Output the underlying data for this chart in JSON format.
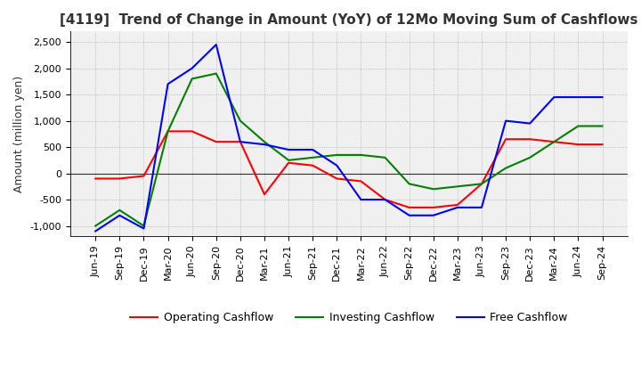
{
  "title": "[4119]  Trend of Change in Amount (YoY) of 12Mo Moving Sum of Cashflows",
  "ylabel": "Amount (million yen)",
  "ylim": [
    -1200,
    2700
  ],
  "yticks": [
    -1000,
    -500,
    0,
    500,
    1000,
    1500,
    2000,
    2500
  ],
  "x_labels": [
    "Jun-19",
    "Sep-19",
    "Dec-19",
    "Mar-20",
    "Jun-20",
    "Sep-20",
    "Dec-20",
    "Mar-21",
    "Jun-21",
    "Sep-21",
    "Dec-21",
    "Mar-22",
    "Jun-22",
    "Sep-22",
    "Dec-22",
    "Mar-23",
    "Jun-23",
    "Sep-23",
    "Dec-23",
    "Mar-24",
    "Jun-24",
    "Sep-24"
  ],
  "operating": [
    -100,
    -100,
    -50,
    800,
    800,
    600,
    600,
    -400,
    200,
    150,
    -100,
    -150,
    -500,
    -650,
    -650,
    -600,
    -200,
    650,
    650,
    600,
    550,
    550
  ],
  "investing": [
    -1000,
    -700,
    -1000,
    800,
    1800,
    1900,
    1000,
    600,
    250,
    300,
    350,
    350,
    300,
    -200,
    -300,
    -250,
    -200,
    100,
    300,
    600,
    900,
    900
  ],
  "free": [
    -1100,
    -800,
    -1050,
    1700,
    2000,
    2450,
    600,
    550,
    450,
    450,
    150,
    -500,
    -500,
    -800,
    -800,
    -650,
    -650,
    1000,
    950,
    1450,
    1450,
    1450
  ],
  "operating_color": "#ff0000",
  "investing_color": "#008000",
  "free_color": "#0000ff",
  "bg_color": "#ffffff",
  "plot_bg_color": "#f0f0f0",
  "grid_color": "#aaaaaa",
  "title_color": "#333333",
  "title_fontsize": 11,
  "legend_fontsize": 9,
  "tick_fontsize": 8,
  "ylabel_fontsize": 9
}
